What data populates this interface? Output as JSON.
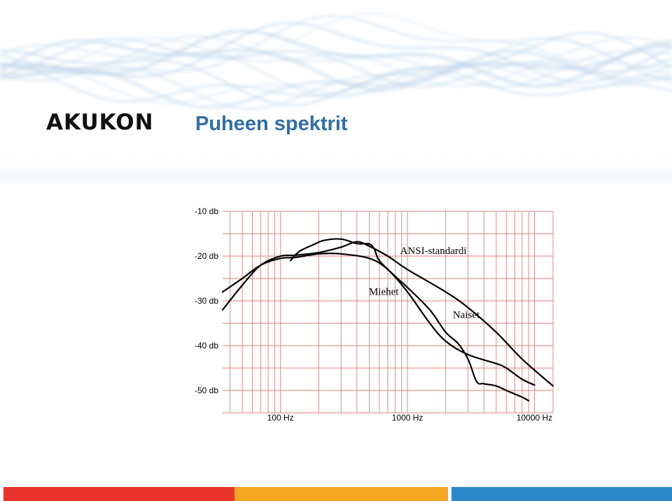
{
  "slide": {
    "title": "Puheen spektrit",
    "logo_text": "AKUKON"
  },
  "colors": {
    "title": "#2f6fa7",
    "wave": "#bcd3ea",
    "grid": "#d9827f",
    "curve": "#000000",
    "footer": [
      "#e8332d",
      "#f5a623",
      "#ffffff",
      "#2a87c8"
    ]
  },
  "chart_data": {
    "type": "line",
    "title": "",
    "xlabel": "",
    "ylabel": "",
    "xscale": "log",
    "xlim": [
      35,
      14000
    ],
    "ylim": [
      -55,
      -10
    ],
    "grid": true,
    "x_ticks": [
      {
        "value": 100,
        "label": "100 Hz"
      },
      {
        "value": 1000,
        "label": "1000 Hz"
      },
      {
        "value": 10000,
        "label": "10000 Hz"
      }
    ],
    "y_ticks": [
      {
        "value": -10,
        "label": "-10 db"
      },
      {
        "value": -20,
        "label": "-20 db"
      },
      {
        "value": -30,
        "label": "-30 db"
      },
      {
        "value": -40,
        "label": "-40 db"
      },
      {
        "value": -50,
        "label": "-50 db"
      }
    ],
    "series": [
      {
        "name": "ANSI-standardi",
        "points": [
          [
            35,
            -32
          ],
          [
            50,
            -26.5
          ],
          [
            70,
            -22
          ],
          [
            100,
            -20
          ],
          [
            130,
            -19.8
          ],
          [
            200,
            -19.2
          ],
          [
            300,
            -18
          ],
          [
            400,
            -16.8
          ],
          [
            500,
            -17.8
          ],
          [
            700,
            -20
          ],
          [
            1000,
            -23
          ],
          [
            2000,
            -28
          ],
          [
            3000,
            -31.5
          ],
          [
            5000,
            -37
          ],
          [
            8000,
            -43
          ],
          [
            14000,
            -49
          ]
        ]
      },
      {
        "name": "Miehet",
        "points": [
          [
            35,
            -28
          ],
          [
            50,
            -25
          ],
          [
            70,
            -22
          ],
          [
            100,
            -20.5
          ],
          [
            130,
            -20.3
          ],
          [
            200,
            -19.5
          ],
          [
            300,
            -19.5
          ],
          [
            500,
            -20.5
          ],
          [
            700,
            -23
          ],
          [
            1000,
            -28
          ],
          [
            1500,
            -35
          ],
          [
            2000,
            -39
          ],
          [
            3000,
            -42
          ],
          [
            5000,
            -44
          ],
          [
            6000,
            -45
          ],
          [
            8000,
            -47.5
          ],
          [
            10000,
            -48.8
          ]
        ]
      },
      {
        "name": "Naiset",
        "points": [
          [
            120,
            -21
          ],
          [
            140,
            -19
          ],
          [
            180,
            -17.5
          ],
          [
            220,
            -16.5
          ],
          [
            300,
            -16.2
          ],
          [
            400,
            -17.2
          ],
          [
            500,
            -17.3
          ],
          [
            550,
            -18.5
          ],
          [
            600,
            -21
          ],
          [
            800,
            -24.5
          ],
          [
            1000,
            -27
          ],
          [
            1500,
            -32
          ],
          [
            2000,
            -37
          ],
          [
            2500,
            -39.5
          ],
          [
            3000,
            -43
          ],
          [
            3500,
            -48
          ],
          [
            4000,
            -48.5
          ],
          [
            5000,
            -49
          ],
          [
            6000,
            -50
          ],
          [
            8000,
            -51.5
          ],
          [
            9000,
            -52.3
          ]
        ]
      }
    ]
  }
}
